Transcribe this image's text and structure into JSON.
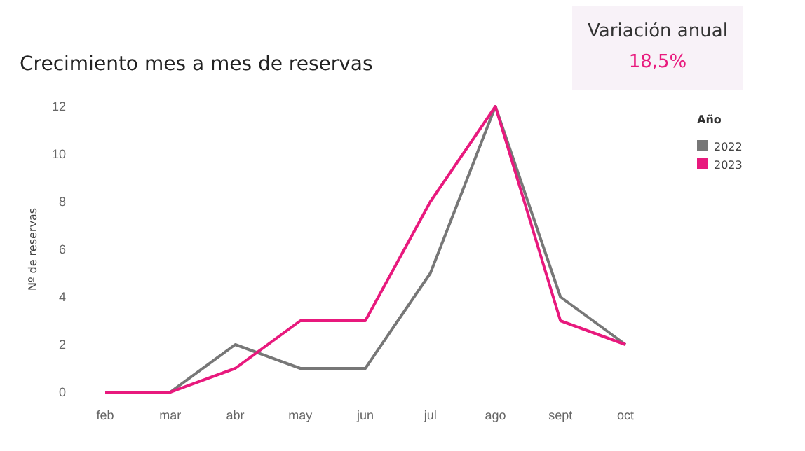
{
  "chart_data": [
    {
      "type": "line",
      "title": "Crecimiento mes a mes de reservas",
      "ylabel": "Nº de reservas",
      "legend_title": "Año",
      "categories": [
        "feb",
        "mar",
        "abr",
        "may",
        "jun",
        "jul",
        "ago",
        "sept",
        "oct"
      ],
      "series": [
        {
          "name": "2022",
          "color": "#777777",
          "values": [
            0,
            0,
            2,
            1,
            1,
            5,
            12,
            4,
            2
          ]
        },
        {
          "name": "2023",
          "color": "#e8197d",
          "values": [
            0,
            0,
            1,
            3,
            3,
            8,
            12,
            3,
            2
          ]
        }
      ],
      "ylim": [
        0,
        12
      ],
      "yticks": [
        0,
        2,
        4,
        6,
        8,
        10,
        12
      ],
      "grid": false,
      "legend": "top right",
      "marker": "none",
      "line_style": "solid"
    },
    {
      "type": "other",
      "title": "Variación anual",
      "annotations": [
        "18,5%"
      ]
    }
  ]
}
